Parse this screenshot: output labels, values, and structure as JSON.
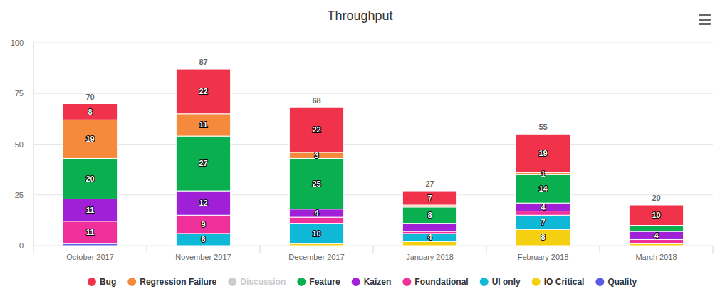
{
  "chart_data": {
    "type": "bar",
    "title": "Throughput",
    "stacked": true,
    "grid": true,
    "legend": "bottom",
    "data_labels": true,
    "categories": [
      "October 2017",
      "November 2017",
      "December 2017",
      "January 2018",
      "February 2018",
      "March 2018"
    ],
    "ylim": [
      0,
      100
    ],
    "yticks": [
      0,
      25,
      50,
      75,
      100
    ],
    "totals": [
      70,
      87,
      68,
      27,
      55,
      20
    ],
    "series": [
      {
        "name": "Bug",
        "color": "#f0324b",
        "values": [
          8,
          22,
          22,
          7,
          19,
          10
        ],
        "value_labels": [
          "8",
          "22",
          "22",
          "7",
          "19",
          "10"
        ]
      },
      {
        "name": "Regression Failure",
        "color": "#f58a3c",
        "values": [
          19,
          11,
          3,
          1,
          1,
          0
        ],
        "value_labels": [
          "19",
          "11",
          "3",
          null,
          "1",
          null
        ]
      },
      {
        "name": "Discussion",
        "color": "#cccccc",
        "values": [
          null,
          null,
          null,
          null,
          null,
          null
        ],
        "value_labels": [
          null,
          null,
          null,
          null,
          null,
          null
        ]
      },
      {
        "name": "Feature",
        "color": "#0ab04f",
        "values": [
          20,
          27,
          25,
          8,
          14,
          3
        ],
        "value_labels": [
          "20",
          "27",
          "25",
          "8",
          "14",
          null
        ]
      },
      {
        "name": "Kaizen",
        "color": "#a020d8",
        "values": [
          11,
          12,
          4,
          4,
          4,
          4
        ],
        "value_labels": [
          "11",
          "12",
          "4",
          null,
          "4",
          "4"
        ]
      },
      {
        "name": "Foundational",
        "color": "#f0309a",
        "values": [
          11,
          9,
          3,
          1,
          2,
          2
        ],
        "value_labels": [
          "11",
          "9",
          null,
          null,
          null,
          null
        ]
      },
      {
        "name": "UI only",
        "color": "#10b8d8",
        "values": [
          0,
          6,
          10,
          4,
          7,
          0
        ],
        "value_labels": [
          null,
          "6",
          "10",
          "4",
          "7",
          null
        ]
      },
      {
        "name": "IO Critical",
        "color": "#f5d010",
        "values": [
          0,
          0,
          1,
          2,
          8,
          1
        ],
        "value_labels": [
          null,
          null,
          null,
          null,
          "8",
          null
        ]
      },
      {
        "name": "Quality",
        "color": "#5a5ae8",
        "values": [
          1,
          0,
          0,
          0,
          0,
          0
        ],
        "value_labels": [
          null,
          null,
          null,
          null,
          null,
          null
        ]
      }
    ]
  }
}
